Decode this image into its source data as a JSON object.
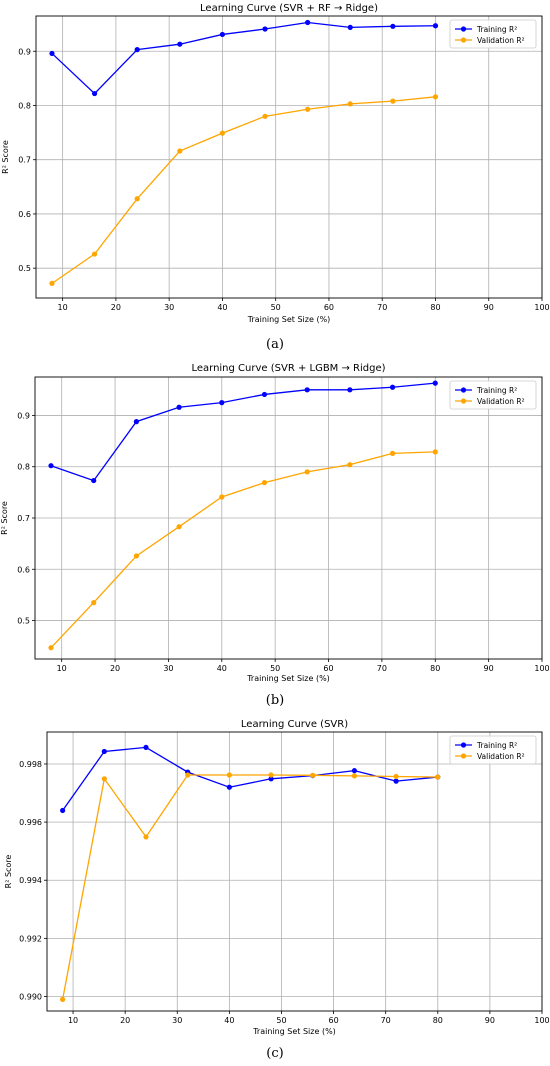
{
  "panel_labels": [
    "(a)",
    "(b)",
    "(c)"
  ],
  "chart_data": [
    {
      "type": "line",
      "title": "Learning Curve (SVR + RF → Ridge)",
      "xlabel": "Training Set Size (%)",
      "ylabel": "R² Score",
      "xlim": [
        5,
        100
      ],
      "ylim": [
        0.445,
        0.965
      ],
      "xticks": [
        10,
        20,
        30,
        40,
        50,
        60,
        70,
        80,
        90,
        100
      ],
      "yticks": [
        0.5,
        0.6,
        0.7,
        0.8,
        0.9
      ],
      "ytick_labels": [
        "0.5",
        "0.6",
        "0.7",
        "0.8",
        "0.9"
      ],
      "grid": true,
      "legend_position": "top-right",
      "x": [
        8,
        16,
        24,
        32,
        40,
        48,
        56,
        64,
        72,
        80
      ],
      "series": [
        {
          "name": "Training R²",
          "color": "#0000ff",
          "values": [
            0.896,
            0.822,
            0.903,
            0.913,
            0.931,
            0.941,
            0.953,
            0.944,
            0.946,
            0.947
          ]
        },
        {
          "name": "Validation R²",
          "color": "#ffa500",
          "values": [
            0.472,
            0.526,
            0.628,
            0.716,
            0.749,
            0.78,
            0.793,
            0.803,
            0.808,
            0.816
          ]
        }
      ]
    },
    {
      "type": "line",
      "title": "Learning Curve (SVR + LGBM → Ridge)",
      "xlabel": "Training Set Size (%)",
      "ylabel": "R² Score",
      "xlim": [
        5,
        100
      ],
      "ylim": [
        0.425,
        0.975
      ],
      "xticks": [
        10,
        20,
        30,
        40,
        50,
        60,
        70,
        80,
        90,
        100
      ],
      "yticks": [
        0.5,
        0.6,
        0.7,
        0.8,
        0.9
      ],
      "ytick_labels": [
        "0.5",
        "0.6",
        "0.7",
        "0.8",
        "0.9"
      ],
      "grid": true,
      "legend_position": "top-right",
      "x": [
        8,
        16,
        24,
        32,
        40,
        48,
        56,
        64,
        72,
        80
      ],
      "series": [
        {
          "name": "Training R²",
          "color": "#0000ff",
          "values": [
            0.802,
            0.773,
            0.888,
            0.916,
            0.925,
            0.941,
            0.95,
            0.95,
            0.955,
            0.963
          ]
        },
        {
          "name": "Validation R²",
          "color": "#ffa500",
          "values": [
            0.447,
            0.535,
            0.626,
            0.683,
            0.741,
            0.769,
            0.79,
            0.804,
            0.826,
            0.829
          ]
        }
      ]
    },
    {
      "type": "line",
      "title": "Learning Curve (SVR)",
      "xlabel": "Training Set Size (%)",
      "ylabel": "R² Score",
      "xlim": [
        5,
        100
      ],
      "ylim": [
        0.9895,
        0.9991
      ],
      "xticks": [
        10,
        20,
        30,
        40,
        50,
        60,
        70,
        80,
        90,
        100
      ],
      "yticks": [
        0.99,
        0.992,
        0.994,
        0.996,
        0.998
      ],
      "ytick_labels": [
        "0.990",
        "0.992",
        "0.994",
        "0.996",
        "0.998"
      ],
      "grid": true,
      "legend_position": "top-right",
      "x": [
        8,
        16,
        24,
        32,
        40,
        48,
        56,
        64,
        72,
        80
      ],
      "series": [
        {
          "name": "Training R²",
          "color": "#0000ff",
          "values": [
            0.9964,
            0.99843,
            0.99857,
            0.99772,
            0.9972,
            0.99749,
            0.9976,
            0.99777,
            0.99741,
            0.99755
          ]
        },
        {
          "name": "Validation R²",
          "color": "#ffa500",
          "values": [
            0.9899,
            0.99749,
            0.99549,
            0.99762,
            0.99762,
            0.99762,
            0.99761,
            0.99759,
            0.99757,
            0.99755
          ]
        }
      ]
    }
  ]
}
